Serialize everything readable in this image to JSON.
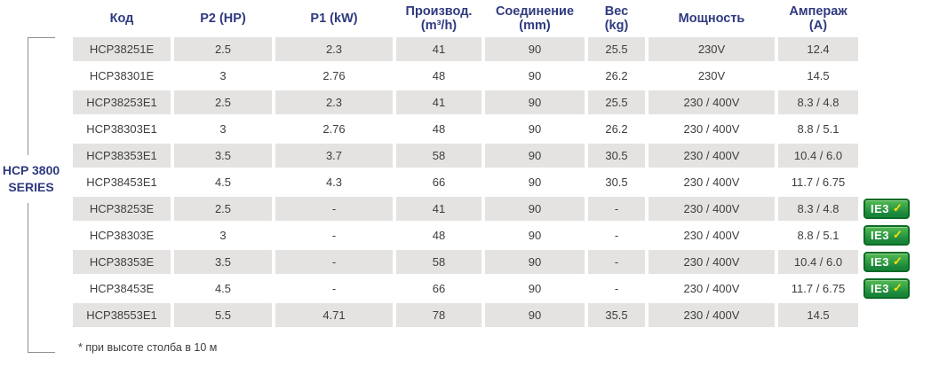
{
  "series_label": {
    "line1": "HCP 3800",
    "line2": "SERIES"
  },
  "footnote": "* при высоте столба в 10 м",
  "badge": {
    "label": "IE3",
    "check": "✓"
  },
  "colors": {
    "header_text": "#2f3a7f",
    "body_text": "#3e3e3e",
    "row_gray": "#e4e3e1",
    "bracket_line": "#8f8f8f",
    "badge_green_top": "#53bb52",
    "badge_green_bottom": "#17843a",
    "badge_border": "#0b6b24",
    "badge_check": "#ffe20a"
  },
  "table": {
    "columns": [
      {
        "key": "code",
        "label": "Код",
        "label2": ""
      },
      {
        "key": "p2",
        "label": "P2 (HP)",
        "label2": ""
      },
      {
        "key": "p1",
        "label": "P1 (kW)",
        "label2": ""
      },
      {
        "key": "flow",
        "label": "Производ.",
        "label2": "(m³/h)"
      },
      {
        "key": "connection",
        "label": "Соединение",
        "label2": "(mm)"
      },
      {
        "key": "weight",
        "label": "Вес",
        "label2": "(kg)"
      },
      {
        "key": "power",
        "label": "Мощность",
        "label2": ""
      },
      {
        "key": "amperage",
        "label": "Ампераж",
        "label2": "(A)"
      }
    ],
    "rows": [
      {
        "code": "HCP38251E",
        "p2": "2.5",
        "p1": "2.3",
        "flow": "41",
        "connection": "90",
        "weight": "25.5",
        "power": "230V",
        "amperage": "12.4",
        "ie3": false
      },
      {
        "code": "HCP38301E",
        "p2": "3",
        "p1": "2.76",
        "flow": "48",
        "connection": "90",
        "weight": "26.2",
        "power": "230V",
        "amperage": "14.5",
        "ie3": false
      },
      {
        "code": "HCP38253E1",
        "p2": "2.5",
        "p1": "2.3",
        "flow": "41",
        "connection": "90",
        "weight": "25.5",
        "power": "230 / 400V",
        "amperage": "8.3 / 4.8",
        "ie3": false
      },
      {
        "code": "HCP38303E1",
        "p2": "3",
        "p1": "2.76",
        "flow": "48",
        "connection": "90",
        "weight": "26.2",
        "power": "230 / 400V",
        "amperage": "8.8 / 5.1",
        "ie3": false
      },
      {
        "code": "HCP38353E1",
        "p2": "3.5",
        "p1": "3.7",
        "flow": "58",
        "connection": "90",
        "weight": "30.5",
        "power": "230 / 400V",
        "amperage": "10.4 / 6.0",
        "ie3": false
      },
      {
        "code": "HCP38453E1",
        "p2": "4.5",
        "p1": "4.3",
        "flow": "66",
        "connection": "90",
        "weight": "30.5",
        "power": "230 / 400V",
        "amperage": "11.7 / 6.75",
        "ie3": false
      },
      {
        "code": "HCP38253E",
        "p2": "2.5",
        "p1": "-",
        "flow": "41",
        "connection": "90",
        "weight": "-",
        "power": "230 / 400V",
        "amperage": "8.3 / 4.8",
        "ie3": true
      },
      {
        "code": "HCP38303E",
        "p2": "3",
        "p1": "-",
        "flow": "48",
        "connection": "90",
        "weight": "-",
        "power": "230 / 400V",
        "amperage": "8.8 / 5.1",
        "ie3": true
      },
      {
        "code": "HCP38353E",
        "p2": "3.5",
        "p1": "-",
        "flow": "58",
        "connection": "90",
        "weight": "-",
        "power": "230 / 400V",
        "amperage": "10.4 / 6.0",
        "ie3": true
      },
      {
        "code": "HCP38453E",
        "p2": "4.5",
        "p1": "-",
        "flow": "66",
        "connection": "90",
        "weight": "-",
        "power": "230 / 400V",
        "amperage": "11.7 / 6.75",
        "ie3": true
      },
      {
        "code": "HCP38553E1",
        "p2": "5.5",
        "p1": "4.71",
        "flow": "78",
        "connection": "90",
        "weight": "35.5",
        "power": "230 / 400V",
        "amperage": "14.5",
        "ie3": false
      }
    ]
  }
}
